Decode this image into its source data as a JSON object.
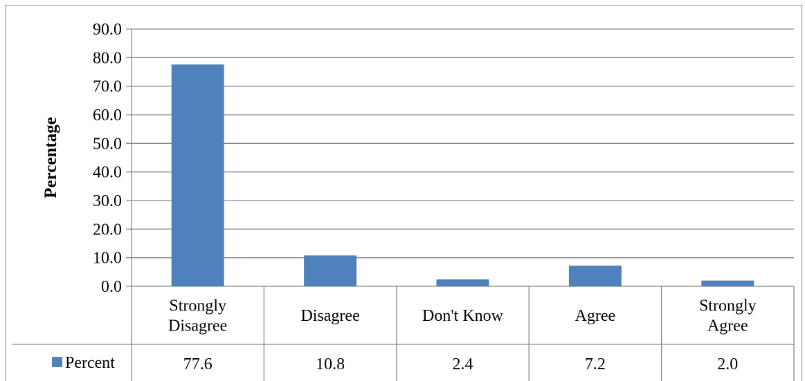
{
  "chart_data": {
    "type": "bar",
    "categories": [
      "Strongly Disagree",
      "Disagree",
      "Don't Know",
      "Agree",
      "Strongly Agree"
    ],
    "category_lines": [
      [
        "Strongly",
        "Disagree"
      ],
      [
        "Disagree"
      ],
      [
        "Don't Know"
      ],
      [
        "Agree"
      ],
      [
        "Strongly",
        "Agree"
      ]
    ],
    "series": [
      {
        "name": "Percent",
        "values": [
          77.6,
          10.8,
          2.4,
          7.2,
          2.0
        ],
        "labels": [
          "77.6",
          "10.8",
          "2.4",
          "7.2",
          "2.0"
        ],
        "color": "#4F81BD"
      }
    ],
    "ylabel": "Percentage",
    "ylim": [
      0,
      90
    ],
    "yticks": [
      "0.0",
      "10.0",
      "20.0",
      "30.0",
      "40.0",
      "50.0",
      "60.0",
      "70.0",
      "80.0",
      "90.0"
    ],
    "grid": true,
    "legend": "data-table",
    "data_table": true,
    "gridline_color": "#868686"
  }
}
